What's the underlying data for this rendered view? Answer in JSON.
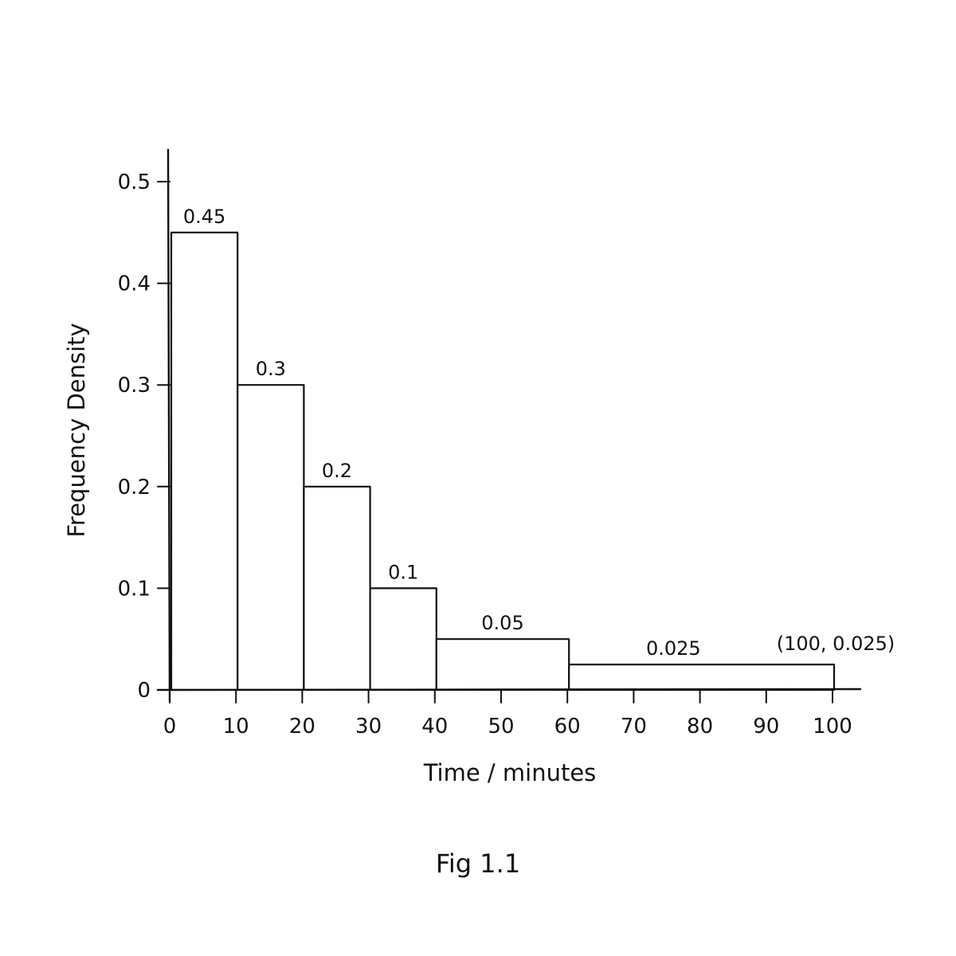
{
  "chart_data": {
    "type": "bar",
    "subtype": "histogram",
    "bins": [
      {
        "start": 0,
        "end": 10,
        "value": 0.45,
        "label": "0.45"
      },
      {
        "start": 10,
        "end": 20,
        "value": 0.3,
        "label": "0.3"
      },
      {
        "start": 20,
        "end": 30,
        "value": 0.2,
        "label": "0.2"
      },
      {
        "start": 30,
        "end": 40,
        "value": 0.1,
        "label": "0.1"
      },
      {
        "start": 40,
        "end": 60,
        "value": 0.05,
        "label": "0.05"
      },
      {
        "start": 60,
        "end": 100,
        "value": 0.025,
        "label": "0.025"
      }
    ],
    "xlabel": "Time / minutes",
    "ylabel": "Frequency Density",
    "xlim": [
      0,
      100
    ],
    "ylim": [
      0,
      0.5
    ],
    "x_ticks": [
      "0",
      "10",
      "20",
      "30",
      "40",
      "50",
      "60",
      "70",
      "80",
      "90",
      "100"
    ],
    "y_ticks": [
      "0",
      "0.1",
      "0.2",
      "0.3",
      "0.4",
      "0.5"
    ],
    "annotations": [
      {
        "text": "(100, 0.025)",
        "x": 100,
        "y": 0.025
      }
    ],
    "grid": false,
    "legend": "none"
  },
  "caption": "Fig 1.1"
}
